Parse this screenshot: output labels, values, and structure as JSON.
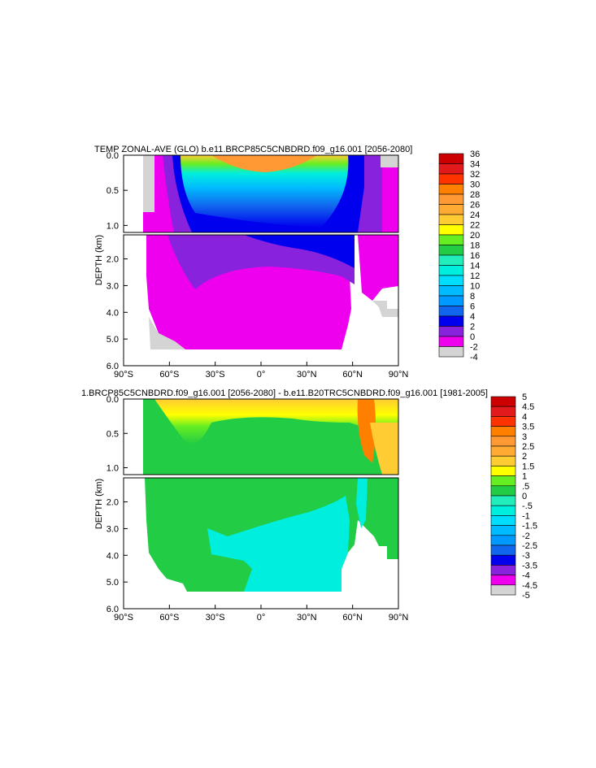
{
  "chart_data": [
    {
      "type": "heatmap",
      "title": "TEMP ZONAL-AVE (GLO) b.e11.BRCP85C5CNBDRD.f09_g16.001 [2056-2080]",
      "xlabel": "",
      "ylabel": "DEPTH (km)",
      "xlim": [
        -90,
        90
      ],
      "ylim": [
        6.0,
        0.0
      ],
      "x_ticks": [
        -90,
        -60,
        -30,
        0,
        30,
        60,
        90
      ],
      "x_tick_labels": [
        "90°S",
        "60°S",
        "30°S",
        "0°",
        "30°N",
        "60°N",
        "90°N"
      ],
      "y_ticks_upper": [
        0.0,
        0.5,
        1.0
      ],
      "y_tick_labels_upper": [
        "0.0",
        "0.5",
        "1.0"
      ],
      "y_ticks_lower": [
        2.0,
        3.0,
        4.0,
        5.0,
        6.0
      ],
      "y_tick_labels_lower": [
        "2.0",
        "3.0",
        "4.0",
        "5.0",
        "6.0"
      ],
      "colorbar": {
        "labels": [
          "36",
          "34",
          "32",
          "30",
          "28",
          "26",
          "24",
          "22",
          "20",
          "18",
          "16",
          "14",
          "12",
          "10",
          "8",
          "6",
          "4",
          "2",
          "0",
          "-2",
          "-4"
        ],
        "colors": [
          "#cc0000",
          "#e31a1c",
          "#ff3300",
          "#ff7f00",
          "#ff9933",
          "#ffaa33",
          "#ffcc33",
          "#ffff00",
          "#66ee22",
          "#22cc44",
          "#22eebb",
          "#00eedd",
          "#00ddff",
          "#00bbff",
          "#0099ff",
          "#1166ee",
          "#0000ee",
          "#8822dd",
          "#ee00ee",
          "#d4d4d4",
          "#777777"
        ]
      }
    },
    {
      "type": "heatmap",
      "title": "1.BRCP85C5CNBDRD.f09_g16.001 [2056-2080] - b.e11.B20TRC5CNBDRD.f09_g16.001 [1981-2005]",
      "xlabel": "",
      "ylabel": "DEPTH (km)",
      "xlim": [
        -90,
        90
      ],
      "ylim": [
        6.0,
        0.0
      ],
      "x_ticks": [
        -90,
        -60,
        -30,
        0,
        30,
        60,
        90
      ],
      "x_tick_labels": [
        "90°S",
        "60°S",
        "30°S",
        "0°",
        "30°N",
        "60°N",
        "90°N"
      ],
      "y_ticks_upper": [
        0.0,
        0.5,
        1.0
      ],
      "y_tick_labels_upper": [
        "0.0",
        "0.5",
        "1.0"
      ],
      "y_ticks_lower": [
        2.0,
        3.0,
        4.0,
        5.0,
        6.0
      ],
      "y_tick_labels_lower": [
        "2.0",
        "3.0",
        "4.0",
        "5.0",
        "6.0"
      ],
      "colorbar": {
        "labels": [
          "5",
          "4.5",
          "4",
          "3.5",
          "3",
          "2.5",
          "2",
          "1.5",
          "1",
          ".5",
          "0",
          "-.5",
          "-1",
          "-1.5",
          "-2",
          "-2.5",
          "-3",
          "-3.5",
          "-4",
          "-4.5",
          "-5"
        ],
        "colors": [
          "#cc0000",
          "#e31a1c",
          "#ff3300",
          "#ff7f00",
          "#ff9933",
          "#ffaa33",
          "#ffcc33",
          "#ffff00",
          "#66ee22",
          "#22cc44",
          "#22eebb",
          "#00eedd",
          "#00ddff",
          "#00bbff",
          "#0099ff",
          "#1166ee",
          "#0000ee",
          "#8822dd",
          "#ee00ee",
          "#d4d4d4",
          "#777777"
        ]
      }
    }
  ]
}
